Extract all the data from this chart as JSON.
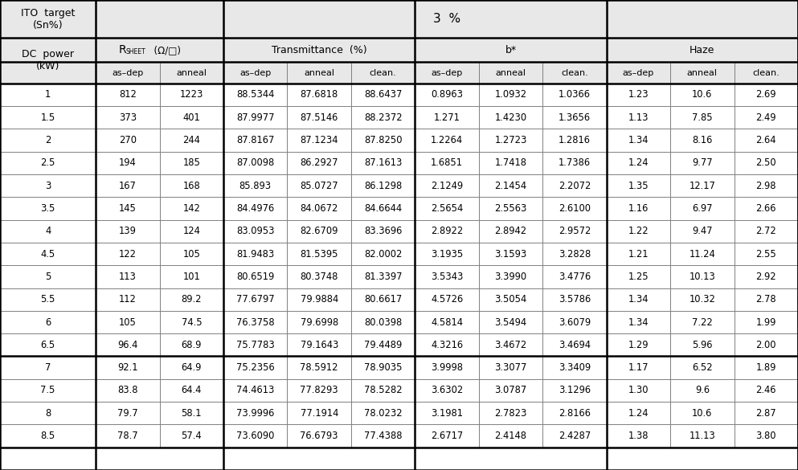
{
  "dc_power": [
    "1",
    "1.5",
    "2",
    "2.5",
    "3",
    "3.5",
    "4",
    "4.5",
    "5",
    "5.5",
    "6",
    "6.5",
    "7",
    "7.5",
    "8",
    "8.5"
  ],
  "r_sheet_asdep": [
    "812",
    "373",
    "270",
    "194",
    "167",
    "145",
    "139",
    "122",
    "113",
    "112",
    "105",
    "96.4",
    "92.1",
    "83.8",
    "79.7",
    "78.7"
  ],
  "r_sheet_anneal": [
    "1223",
    "401",
    "244",
    "185",
    "168",
    "142",
    "124",
    "105",
    "101",
    "89.2",
    "74.5",
    "68.9",
    "64.9",
    "64.4",
    "58.1",
    "57.4"
  ],
  "trans_asdep": [
    "88.5344",
    "87.9977",
    "87.8167",
    "87.0098",
    "85.893",
    "84.4976",
    "83.0953",
    "81.9483",
    "80.6519",
    "77.6797",
    "76.3758",
    "75.7783",
    "75.2356",
    "74.4613",
    "73.9996",
    "73.6090"
  ],
  "trans_anneal": [
    "87.6818",
    "87.5146",
    "87.1234",
    "86.2927",
    "85.0727",
    "84.0672",
    "82.6709",
    "81.5395",
    "80.3748",
    "79.9884",
    "79.6998",
    "79.1643",
    "78.5912",
    "77.8293",
    "77.1914",
    "76.6793"
  ],
  "trans_clean": [
    "88.6437",
    "88.2372",
    "87.8250",
    "87.1613",
    "86.1298",
    "84.6644",
    "83.3696",
    "82.0002",
    "81.3397",
    "80.6617",
    "80.0398",
    "79.4489",
    "78.9035",
    "78.5282",
    "78.0232",
    "77.4388"
  ],
  "b_asdep": [
    "0.8963",
    "1.271",
    "1.2264",
    "1.6851",
    "2.1249",
    "2.5654",
    "2.8922",
    "3.1935",
    "3.5343",
    "4.5726",
    "4.5814",
    "4.3216",
    "3.9998",
    "3.6302",
    "3.1981",
    "2.6717"
  ],
  "b_anneal": [
    "1.0932",
    "1.4230",
    "1.2723",
    "1.7418",
    "2.1454",
    "2.5563",
    "2.8942",
    "3.1593",
    "3.3990",
    "3.5054",
    "3.5494",
    "3.4672",
    "3.3077",
    "3.0787",
    "2.7823",
    "2.4148"
  ],
  "b_clean": [
    "1.0366",
    "1.3656",
    "1.2816",
    "1.7386",
    "2.2072",
    "2.6100",
    "2.9572",
    "3.2828",
    "3.4776",
    "3.5786",
    "3.6079",
    "3.4694",
    "3.3409",
    "3.1296",
    "2.8166",
    "2.4287"
  ],
  "haze_asdep": [
    "1.23",
    "1.13",
    "1.34",
    "1.24",
    "1.35",
    "1.16",
    "1.22",
    "1.21",
    "1.25",
    "1.34",
    "1.34",
    "1.29",
    "1.17",
    "1.30",
    "1.24",
    "1.38"
  ],
  "haze_anneal": [
    "10.6",
    "7.85",
    "8.16",
    "9.77",
    "12.17",
    "6.97",
    "9.47",
    "11.24",
    "10.13",
    "10.32",
    "7.22",
    "5.96",
    "6.52",
    "9.6",
    "10.6",
    "11.13"
  ],
  "haze_clean": [
    "2.69",
    "2.49",
    "2.64",
    "2.50",
    "2.98",
    "2.66",
    "2.72",
    "2.55",
    "2.92",
    "2.78",
    "1.99",
    "2.00",
    "1.89",
    "2.46",
    "2.87",
    "3.80"
  ],
  "bg_header": "#e8e8e8",
  "bg_white": "#ffffff",
  "col_widths_raw": [
    120,
    80,
    80,
    80,
    80,
    80,
    80,
    80,
    80,
    80,
    80,
    80
  ],
  "row_heights_raw": [
    50,
    32,
    28,
    30,
    30,
    30,
    30,
    30,
    30,
    30,
    30,
    30,
    30,
    30,
    30,
    30,
    30,
    30,
    30,
    30
  ],
  "thick_after_data_row": 11,
  "figw": 9.93,
  "figh": 5.85,
  "dpi": 100
}
